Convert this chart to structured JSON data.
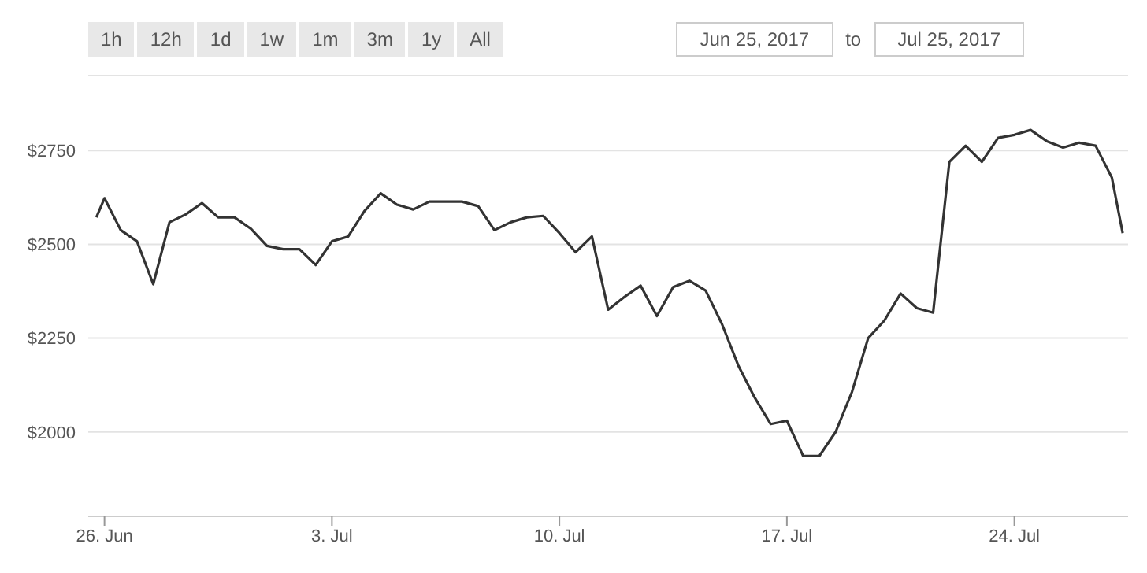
{
  "chart_data": {
    "type": "line",
    "annotations": [
      "1h",
      "12h",
      "1d",
      "1w",
      "1m",
      "3m",
      "1y",
      "All",
      "Jun 25, 2017",
      "to",
      "Jul 25, 2017"
    ],
    "x": [
      "2017-06-25T18:00",
      "2017-06-26T00:00",
      "2017-06-26T12:00",
      "2017-06-27T00:00",
      "2017-06-27T12:00",
      "2017-06-28T00:00",
      "2017-06-28T12:00",
      "2017-06-29T00:00",
      "2017-06-29T12:00",
      "2017-06-30T00:00",
      "2017-06-30T12:00",
      "2017-07-01T00:00",
      "2017-07-01T12:00",
      "2017-07-02T00:00",
      "2017-07-02T12:00",
      "2017-07-03T00:00",
      "2017-07-03T12:00",
      "2017-07-04T00:00",
      "2017-07-04T12:00",
      "2017-07-05T00:00",
      "2017-07-05T12:00",
      "2017-07-06T00:00",
      "2017-07-06T12:00",
      "2017-07-07T00:00",
      "2017-07-07T12:00",
      "2017-07-08T00:00",
      "2017-07-08T12:00",
      "2017-07-09T00:00",
      "2017-07-09T12:00",
      "2017-07-10T00:00",
      "2017-07-10T12:00",
      "2017-07-11T00:00",
      "2017-07-11T12:00",
      "2017-07-12T00:00",
      "2017-07-12T12:00",
      "2017-07-13T00:00",
      "2017-07-13T12:00",
      "2017-07-14T00:00",
      "2017-07-14T12:00",
      "2017-07-15T00:00",
      "2017-07-15T12:00",
      "2017-07-16T00:00",
      "2017-07-16T12:00",
      "2017-07-17T00:00",
      "2017-07-17T12:00",
      "2017-07-18T00:00",
      "2017-07-18T12:00",
      "2017-07-19T00:00",
      "2017-07-19T12:00",
      "2017-07-20T00:00",
      "2017-07-20T12:00",
      "2017-07-21T00:00",
      "2017-07-21T12:00",
      "2017-07-22T00:00",
      "2017-07-22T12:00",
      "2017-07-23T00:00",
      "2017-07-23T12:00",
      "2017-07-24T00:00",
      "2017-07-24T12:00",
      "2017-07-25T00:00",
      "2017-07-25T12:00",
      "2017-07-26T00:00",
      "2017-07-26T12:00",
      "2017-07-27T00:00",
      "2017-07-27T08:00"
    ],
    "series": [
      {
        "color": "#333333",
        "values": [
          2572,
          2623,
          2538,
          2508,
          2394,
          2559,
          2580,
          2610,
          2572,
          2572,
          2542,
          2496,
          2487,
          2487,
          2445,
          2508,
          2521,
          2589,
          2636,
          2606,
          2593,
          2614,
          2614,
          2614,
          2602,
          2538,
          2559,
          2572,
          2576,
          2530,
          2479,
          2521,
          2326,
          2360,
          2390,
          2309,
          2386,
          2403,
          2377,
          2288,
          2178,
          2093,
          2021,
          2030,
          1936,
          1936,
          2000,
          2106,
          2250,
          2297,
          2369,
          2330,
          2318,
          2720,
          2763,
          2720,
          2784,
          2792,
          2805,
          2775,
          2758,
          2771,
          2763,
          2678,
          2530
        ]
      }
    ],
    "xlim": [
      "2017-06-25T12:00",
      "2017-07-27T12:00"
    ],
    "xticks": [
      {
        "value": "2017-06-26",
        "label": "26. Jun"
      },
      {
        "value": "2017-07-03",
        "label": "3. Jul"
      },
      {
        "value": "2017-07-10",
        "label": "10. Jul"
      },
      {
        "value": "2017-07-17",
        "label": "17. Jul"
      },
      {
        "value": "2017-07-24",
        "label": "24. Jul"
      }
    ],
    "ylim": [
      1775,
      2950
    ],
    "yticks": [
      {
        "value": 2000,
        "label": "$2000"
      },
      {
        "value": 2250,
        "label": "$2250"
      },
      {
        "value": 2500,
        "label": "$2500"
      },
      {
        "value": 2750,
        "label": "$2750"
      }
    ],
    "grid": "y",
    "legend": false,
    "marker": "none",
    "line_style": "solid"
  }
}
